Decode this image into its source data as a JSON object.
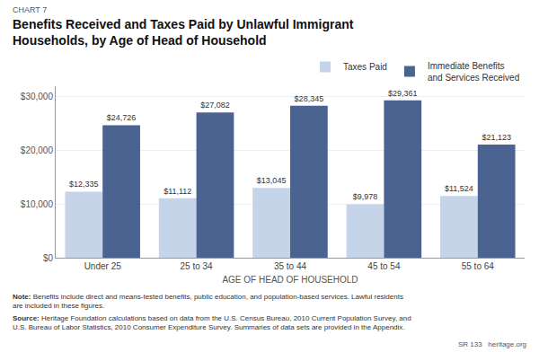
{
  "chart_data": {
    "type": "bar",
    "title": "Benefits Received and Taxes Paid by Unlawful Immigrant\nHouseholds, by Age of Head of Household",
    "xlabel": "AGE OF HEAD OF HOUSEHOLD",
    "categories": [
      "Under 25",
      "25 to 34",
      "35 to 44",
      "45 to 54",
      "55 to 64"
    ],
    "series": [
      {
        "name": "Taxes Paid",
        "color": "#c5d4e8",
        "values": [
          12335,
          11112,
          13045,
          9978,
          11524
        ],
        "value_labels": [
          "$12,335",
          "$11,112",
          "$13,045",
          "$9,978",
          "$11,524"
        ]
      },
      {
        "name": "Immediate Benefits\nand Services Received",
        "color": "#4a6390",
        "values": [
          24726,
          27082,
          28345,
          29361,
          21123
        ],
        "value_labels": [
          "$24,726",
          "$27,082",
          "$28,345",
          "$29,361",
          "$21,123"
        ]
      }
    ],
    "ylim": [
      0,
      32000
    ],
    "yticks": [
      {
        "value": 0,
        "label": "$0"
      },
      {
        "value": 10000,
        "label": "$10,000"
      },
      {
        "value": 20000,
        "label": "$20,000"
      },
      {
        "value": 30000,
        "label": "$30,000"
      }
    ],
    "grid": true,
    "legend": "upper right",
    "data_labels": true,
    "annotations": [
      "CHART 7",
      "Note: Benefits include direct and means-tested benefits, public education, and population-based services. Lawful residents\nare included in these figures.",
      "Source: Heritage Foundation calculations based on data from the U.S. Census Bureau, 2010 Current Population Survey, and\nU.S. Bureau of Labor Statistics, 2010 Consumer Expenditure Survey. Summaries of data sets are provided in the Appendix.",
      "SR 133   heritage.org"
    ]
  }
}
